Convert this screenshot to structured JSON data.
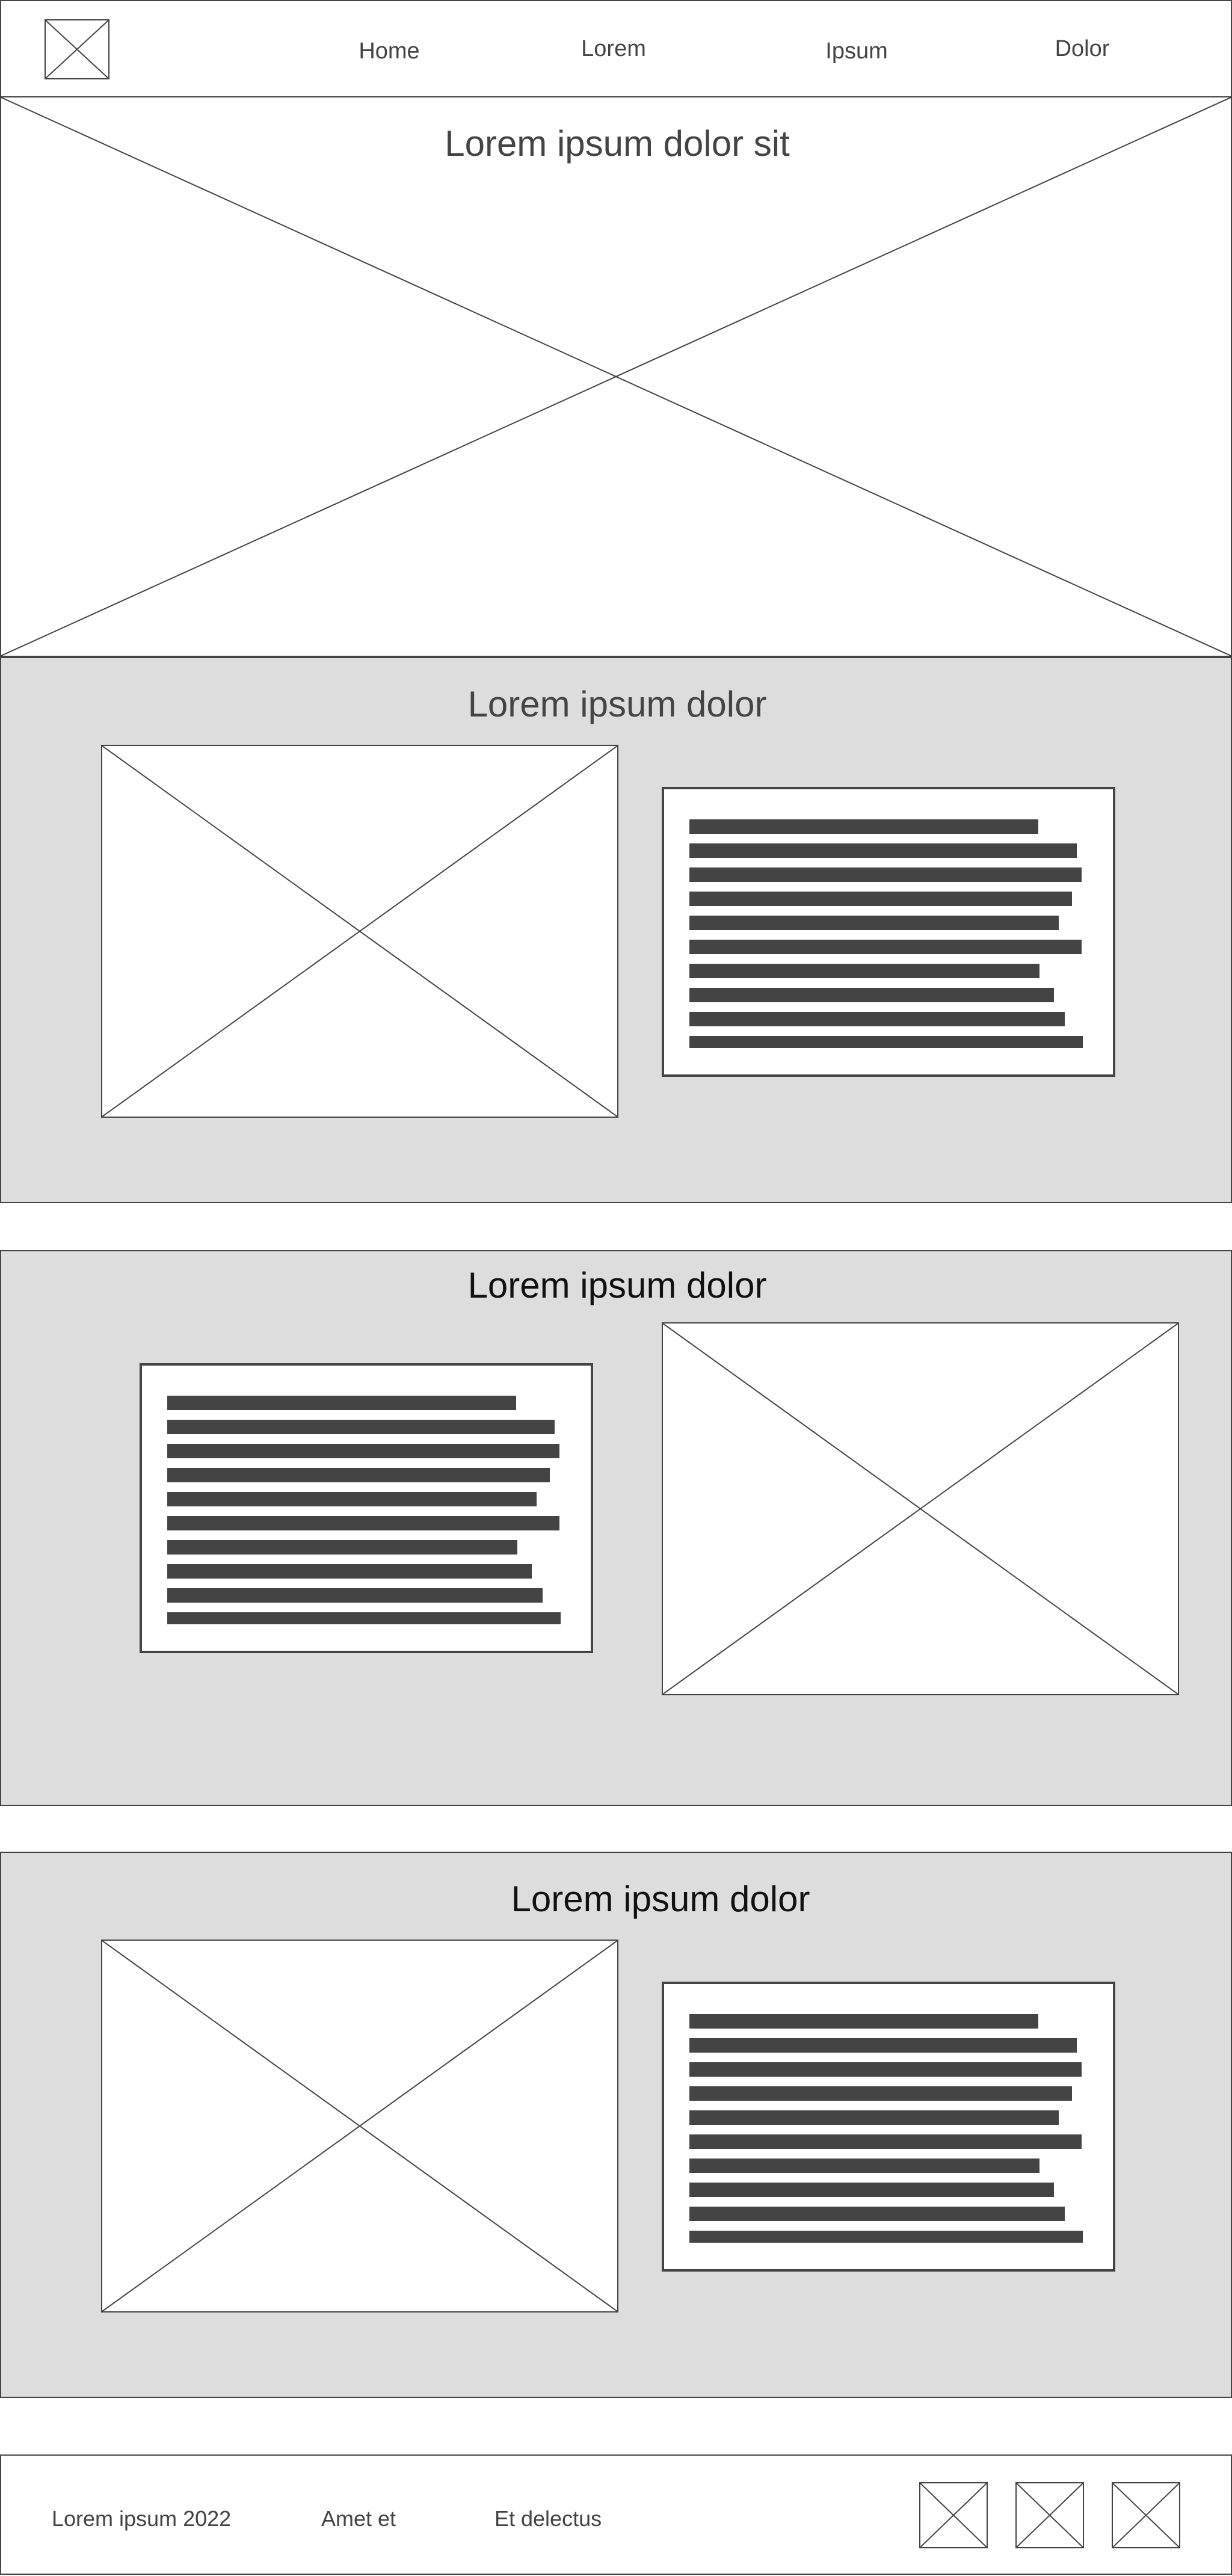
{
  "header": {
    "logo": "logo-placeholder-icon",
    "nav": [
      {
        "label": "Home"
      },
      {
        "label": "Lorem"
      },
      {
        "label": "Ipsum"
      },
      {
        "label": "Dolor"
      }
    ]
  },
  "hero": {
    "title": "Lorem ipsum dolor sit"
  },
  "sections": [
    {
      "title": "Lorem ipsum dolor"
    },
    {
      "title": "Lorem ipsum dolor"
    },
    {
      "title": "Lorem ipsum dolor"
    }
  ],
  "footer": {
    "links": [
      {
        "label": "Lorem ipsum 2022"
      },
      {
        "label": "Amet et"
      },
      {
        "label": "Et delectus"
      }
    ],
    "social_icons": [
      "social-icon-1",
      "social-icon-2",
      "social-icon-3"
    ]
  },
  "colors": {
    "border": "#444444",
    "section_bg": "#dddddd",
    "text_bar": "#444444"
  }
}
